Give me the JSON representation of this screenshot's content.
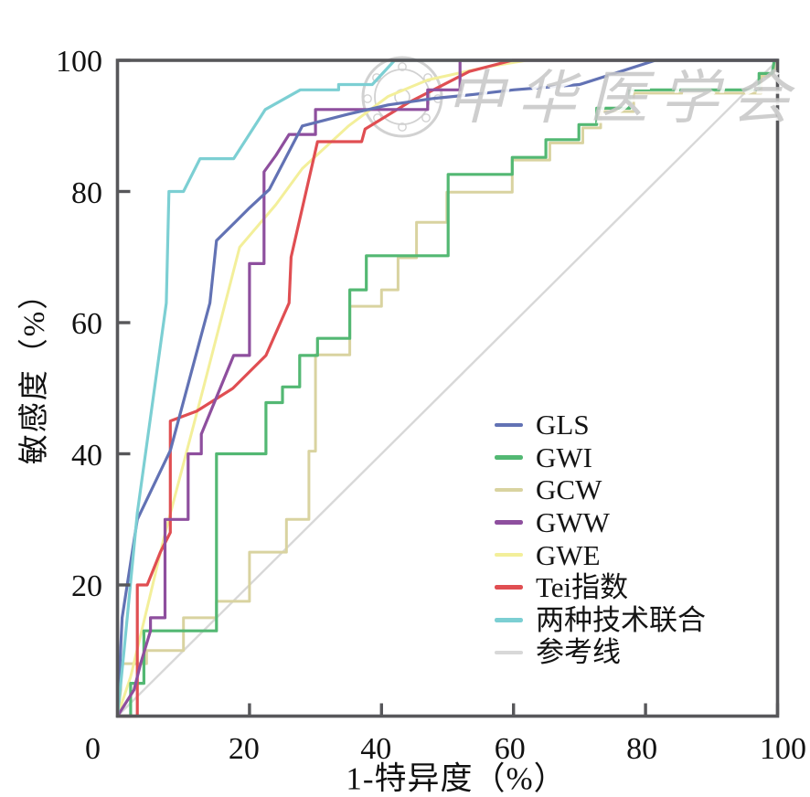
{
  "chart_data": {
    "type": "line",
    "subtype": "roc-curves",
    "title": "",
    "xlabel": "1-特异度（%）",
    "ylabel": "敏感度（%）",
    "xlim": [
      0,
      100
    ],
    "ylim": [
      0,
      100
    ],
    "x_ticks": [
      0,
      20,
      40,
      60,
      80,
      100
    ],
    "y_ticks": [
      20,
      40,
      60,
      80,
      100
    ],
    "grid": false,
    "legend_position": "inside-right",
    "axis_color": "#57575a",
    "background_color": "#ffffff",
    "series": [
      {
        "name": "GLS",
        "color": "#6272b4",
        "width": 3.2,
        "points": [
          [
            0,
            0
          ],
          [
            0.7,
            15
          ],
          [
            3,
            30
          ],
          [
            8,
            40.5
          ],
          [
            14,
            63
          ],
          [
            15,
            72.5
          ],
          [
            20,
            77.5
          ],
          [
            23,
            80.3
          ],
          [
            28,
            90
          ],
          [
            35,
            91.8
          ],
          [
            41,
            93.2
          ],
          [
            48,
            94.2
          ],
          [
            54,
            94.8
          ],
          [
            60,
            95.5
          ],
          [
            70,
            96.3
          ],
          [
            81.5,
            100
          ],
          [
            100,
            100
          ]
        ]
      },
      {
        "name": "GWI",
        "color": "#53b873",
        "width": 3.2,
        "points": [
          [
            0,
            0
          ],
          [
            2,
            0
          ],
          [
            2,
            5
          ],
          [
            4,
            5
          ],
          [
            4,
            13
          ],
          [
            15,
            13
          ],
          [
            15,
            40
          ],
          [
            22.5,
            40
          ],
          [
            22.5,
            47.8
          ],
          [
            25,
            47.8
          ],
          [
            25,
            50.2
          ],
          [
            27.6,
            50.2
          ],
          [
            27.6,
            55
          ],
          [
            30.3,
            55
          ],
          [
            30.3,
            57.6
          ],
          [
            35.2,
            57.6
          ],
          [
            35.2,
            65
          ],
          [
            37.7,
            65
          ],
          [
            37.7,
            70.2
          ],
          [
            50.1,
            70.2
          ],
          [
            50.1,
            82.6
          ],
          [
            59.8,
            82.6
          ],
          [
            59.8,
            85.2
          ],
          [
            64.9,
            85.2
          ],
          [
            64.9,
            87.9
          ],
          [
            69.9,
            87.9
          ],
          [
            69.9,
            90.2
          ],
          [
            72.6,
            90.2
          ],
          [
            72.6,
            92.7
          ],
          [
            77.6,
            92.7
          ],
          [
            77.6,
            95.5
          ],
          [
            97.2,
            95.5
          ],
          [
            97.2,
            98
          ],
          [
            99.2,
            98
          ],
          [
            99.5,
            100
          ],
          [
            100,
            100
          ]
        ]
      },
      {
        "name": "GCW",
        "color": "#d9d3a0",
        "width": 3.0,
        "points": [
          [
            0,
            0
          ],
          [
            0.5,
            4
          ],
          [
            0.5,
            8
          ],
          [
            4.4,
            8
          ],
          [
            4.4,
            10
          ],
          [
            10,
            10
          ],
          [
            10,
            15
          ],
          [
            15,
            15
          ],
          [
            15,
            17.5
          ],
          [
            20,
            17.5
          ],
          [
            20,
            25
          ],
          [
            25.6,
            25
          ],
          [
            25.6,
            30
          ],
          [
            29,
            30
          ],
          [
            29,
            40.4
          ],
          [
            30,
            40.4
          ],
          [
            30,
            55.1
          ],
          [
            35.2,
            55.1
          ],
          [
            35.2,
            62.5
          ],
          [
            40,
            62.5
          ],
          [
            40,
            65
          ],
          [
            42.5,
            65
          ],
          [
            42.5,
            69.9
          ],
          [
            45.3,
            69.9
          ],
          [
            45.3,
            75.3
          ],
          [
            49.9,
            75.3
          ],
          [
            49.9,
            79.9
          ],
          [
            59.8,
            79.9
          ],
          [
            59.8,
            84.8
          ],
          [
            65.5,
            84.8
          ],
          [
            65.5,
            87.4
          ],
          [
            70.5,
            87.4
          ],
          [
            70.5,
            89.7
          ],
          [
            73.2,
            89.7
          ],
          [
            73.2,
            92.2
          ],
          [
            78.2,
            92.2
          ],
          [
            78.2,
            95
          ],
          [
            97.5,
            95
          ],
          [
            97.5,
            97.6
          ],
          [
            99.5,
            97.6
          ],
          [
            99.5,
            100
          ],
          [
            100,
            100
          ]
        ]
      },
      {
        "name": "GWW",
        "color": "#8e4f9e",
        "width": 3.2,
        "points": [
          [
            0,
            0
          ],
          [
            2.5,
            4
          ],
          [
            3.5,
            8
          ],
          [
            5,
            13
          ],
          [
            5,
            15
          ],
          [
            7.2,
            15
          ],
          [
            7.2,
            30
          ],
          [
            10.7,
            30
          ],
          [
            10.7,
            40
          ],
          [
            12.7,
            40
          ],
          [
            12.7,
            43
          ],
          [
            17.6,
            55
          ],
          [
            20,
            55
          ],
          [
            20,
            69
          ],
          [
            22.2,
            69
          ],
          [
            22.2,
            83
          ],
          [
            24,
            85.5
          ],
          [
            26,
            88.7
          ],
          [
            30,
            88.7
          ],
          [
            30,
            92.5
          ],
          [
            47,
            92.5
          ],
          [
            47,
            95.5
          ],
          [
            51.9,
            95.5
          ],
          [
            51.9,
            100
          ],
          [
            100,
            100
          ]
        ]
      },
      {
        "name": "GWE",
        "color": "#f3ef9a",
        "width": 3.0,
        "points": [
          [
            0,
            0
          ],
          [
            2,
            6
          ],
          [
            7,
            27
          ],
          [
            13,
            50
          ],
          [
            18.5,
            71.5
          ],
          [
            24,
            78
          ],
          [
            28,
            83.5
          ],
          [
            35,
            90
          ],
          [
            41,
            94.5
          ],
          [
            47,
            97
          ],
          [
            56,
            99
          ],
          [
            62,
            100
          ],
          [
            100,
            100
          ]
        ]
      },
      {
        "name": "Tei指数",
        "color": "#e04e52",
        "width": 3.2,
        "points": [
          [
            0,
            0
          ],
          [
            3,
            0
          ],
          [
            3,
            20
          ],
          [
            4.5,
            20
          ],
          [
            6.5,
            25
          ],
          [
            8,
            28
          ],
          [
            8,
            45
          ],
          [
            12,
            46.5
          ],
          [
            17.5,
            50
          ],
          [
            22.5,
            55
          ],
          [
            26,
            63
          ],
          [
            26.3,
            70
          ],
          [
            30.3,
            87.6
          ],
          [
            37,
            87.6
          ],
          [
            37.5,
            89.5
          ],
          [
            44,
            93.5
          ],
          [
            53.3,
            98.3
          ],
          [
            59.8,
            100
          ],
          [
            100,
            100
          ]
        ]
      },
      {
        "name": "两种技术联合",
        "color": "#7ccfd3",
        "width": 3.2,
        "points": [
          [
            0,
            0
          ],
          [
            1,
            10
          ],
          [
            3,
            31
          ],
          [
            7.4,
            63
          ],
          [
            7.8,
            80
          ],
          [
            10,
            80
          ],
          [
            12.5,
            85
          ],
          [
            17.6,
            85
          ],
          [
            22.4,
            92.5
          ],
          [
            27.7,
            95.5
          ],
          [
            33.5,
            95.5
          ],
          [
            33.5,
            96.3
          ],
          [
            38.6,
            96.3
          ],
          [
            42,
            100
          ],
          [
            100,
            100
          ]
        ]
      },
      {
        "name": "参考线",
        "color": "#d8d8d8",
        "width": 2.4,
        "points": [
          [
            0,
            0
          ],
          [
            100,
            100
          ]
        ]
      }
    ],
    "z_order": [
      "参考线",
      "GCW",
      "GWE",
      "GWI",
      "Tei指数",
      "GWW",
      "GLS",
      "两种技术联合"
    ]
  },
  "watermark": {
    "text": "中华医学会",
    "color": "#c6c6c6"
  }
}
